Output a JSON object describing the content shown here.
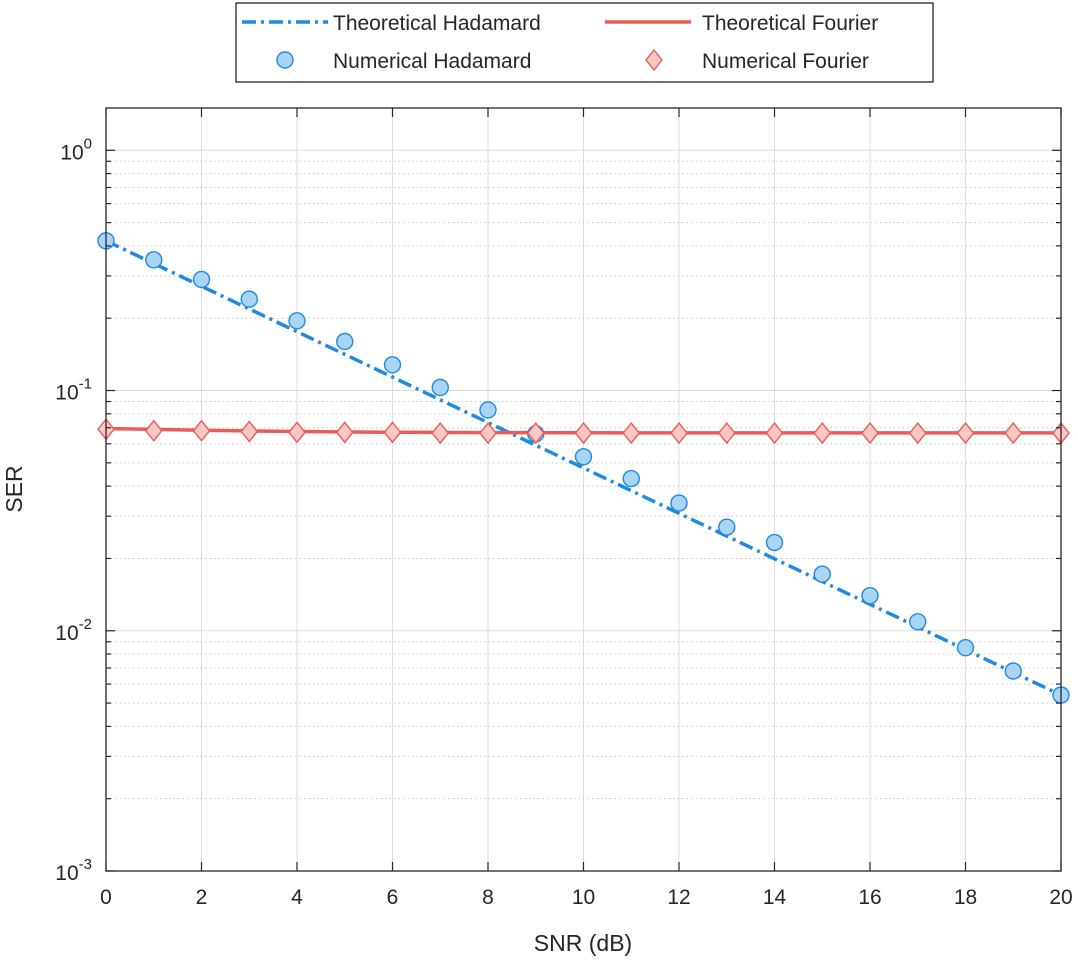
{
  "chart_data": {
    "type": "line",
    "title": "",
    "xlabel": "SNR (dB)",
    "ylabel": "SER",
    "xlim": [
      0,
      20
    ],
    "ylim": [
      0.001,
      1.5
    ],
    "yscale": "log",
    "grid": true,
    "legend_position": "top-outside",
    "xticks": [
      "0",
      "2",
      "4",
      "6",
      "8",
      "10",
      "12",
      "14",
      "16",
      "18",
      "20"
    ],
    "yticks": [
      {
        "base": "10",
        "exp": "0"
      },
      {
        "base": "10",
        "exp": "-1"
      },
      {
        "base": "10",
        "exp": "-2"
      },
      {
        "base": "10",
        "exp": "-3"
      }
    ],
    "series": [
      {
        "name": "Theoretical Hadamard",
        "style": "dash-dot-line",
        "color": "#1f8ae0",
        "x": [
          0,
          20
        ],
        "y": [
          0.42,
          0.0054
        ]
      },
      {
        "name": "Theoretical Fourier",
        "style": "solid-line",
        "color": "#ec5c57",
        "x": [
          0,
          2,
          4,
          6,
          8,
          10,
          12,
          14,
          16,
          18,
          20
        ],
        "y": [
          0.0695,
          0.0683,
          0.0675,
          0.067,
          0.0668,
          0.0667,
          0.0666,
          0.0666,
          0.0666,
          0.0666,
          0.0666
        ]
      },
      {
        "name": "Numerical Hadamard",
        "style": "circle-markers",
        "color": "#1f8ae0",
        "fill": "#a8d4f5",
        "x": [
          0,
          1,
          2,
          3,
          4,
          5,
          6,
          7,
          8,
          9,
          10,
          11,
          12,
          13,
          14,
          15,
          16,
          17,
          18,
          19,
          20
        ],
        "y": [
          0.42,
          0.35,
          0.29,
          0.24,
          0.195,
          0.16,
          0.128,
          0.103,
          0.083,
          0.066,
          0.053,
          0.043,
          0.034,
          0.027,
          0.0233,
          0.0172,
          0.014,
          0.0109,
          0.0085,
          0.0068,
          0.0054
        ]
      },
      {
        "name": "Numerical Fourier",
        "style": "diamond-markers",
        "color": "#ec5c57",
        "fill": "#f9c8c5",
        "x": [
          0,
          1,
          2,
          3,
          4,
          5,
          6,
          7,
          8,
          9,
          10,
          11,
          12,
          13,
          14,
          15,
          16,
          17,
          18,
          19,
          20
        ],
        "y": [
          0.069,
          0.068,
          0.068,
          0.0675,
          0.067,
          0.067,
          0.067,
          0.0665,
          0.0665,
          0.0665,
          0.0665,
          0.0665,
          0.0665,
          0.0665,
          0.0665,
          0.0665,
          0.0665,
          0.0665,
          0.0665,
          0.0665,
          0.0665
        ]
      }
    ]
  }
}
